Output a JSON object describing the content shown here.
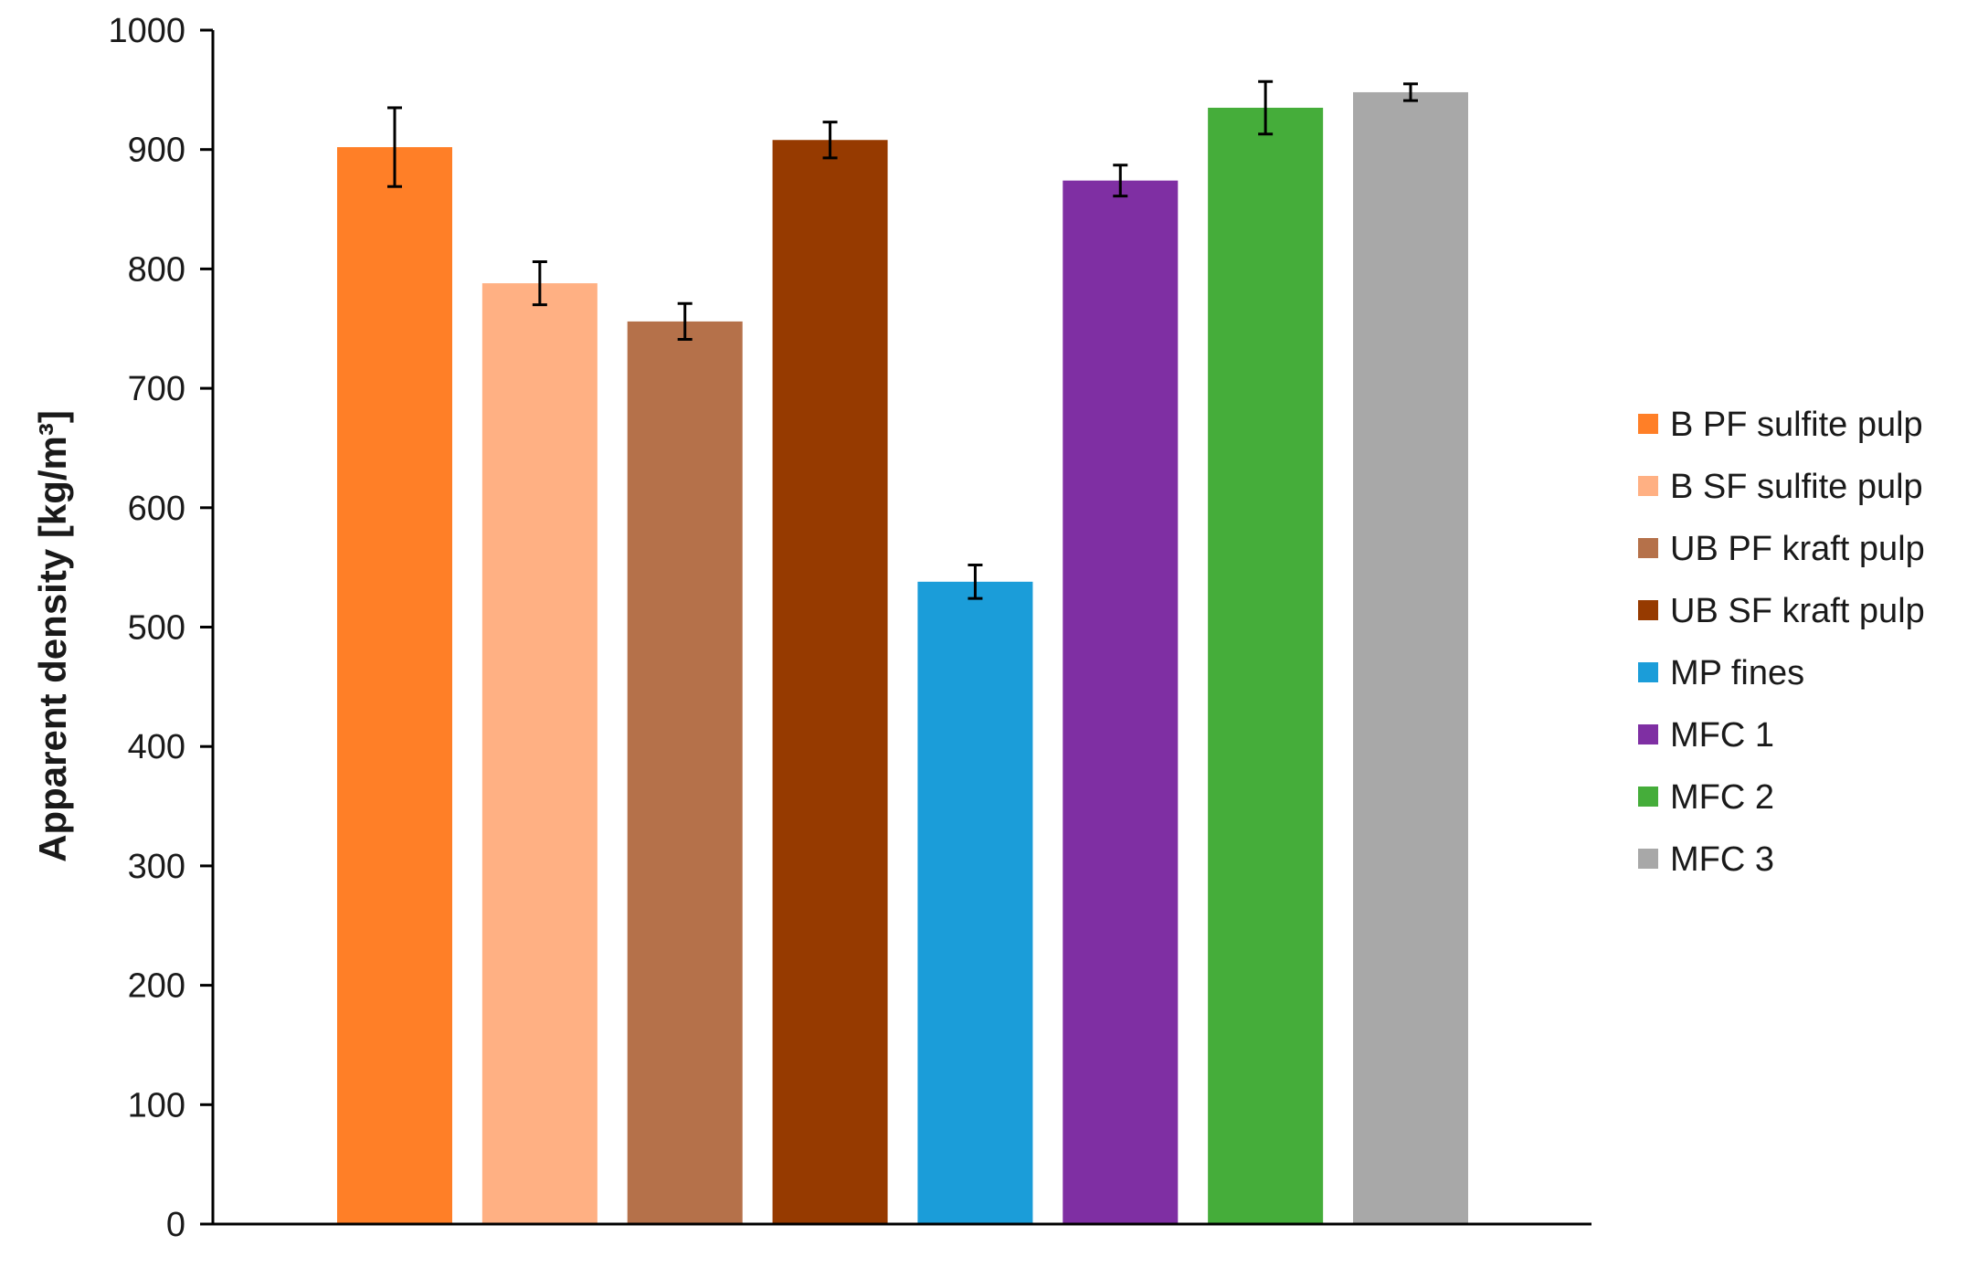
{
  "chart_data": {
    "type": "bar",
    "title": "",
    "xlabel": "",
    "ylabel": "Apparent density [kg/m³]",
    "ylim": [
      0,
      1000
    ],
    "y_ticks": [
      0,
      100,
      200,
      300,
      400,
      500,
      600,
      700,
      800,
      900,
      1000
    ],
    "grid": false,
    "legend_position": "right",
    "series": [
      {
        "name": "B PF sulfite pulp",
        "value": 902,
        "error": 33,
        "color": "#FF7F27"
      },
      {
        "name": "B SF sulfite pulp",
        "value": 788,
        "error": 18,
        "color": "#FFB083"
      },
      {
        "name": "UB PF kraft pulp",
        "value": 756,
        "error": 15,
        "color": "#B5714A"
      },
      {
        "name": "UB SF kraft pulp",
        "value": 908,
        "error": 15,
        "color": "#963A00"
      },
      {
        "name": "MP fines",
        "value": 538,
        "error": 14,
        "color": "#1B9DD9"
      },
      {
        "name": "MFC 1",
        "value": 874,
        "error": 13,
        "color": "#7F2FA3"
      },
      {
        "name": "MFC 2",
        "value": 935,
        "error": 22,
        "color": "#45AD3A"
      },
      {
        "name": "MFC 3",
        "value": 948,
        "error": 7,
        "color": "#A8A8A8"
      }
    ]
  }
}
